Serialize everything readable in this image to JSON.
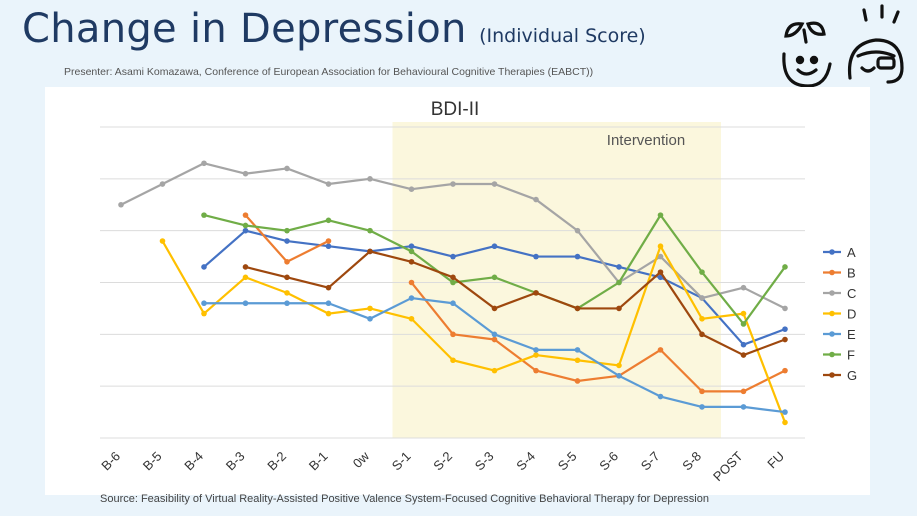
{
  "header": {
    "title": "Change in Depression",
    "subtitle": "(Individual Score)",
    "presenter": "Presenter: Asami Komazawa, Conference of European Association for Behavioural Cognitive Therapies (EABCT))"
  },
  "footer": {
    "source": "Source: Feasibility of Virtual Reality-Assisted Positive Valence System-Focused Cognitive Behavioral Therapy for Depression"
  },
  "chart_data": {
    "type": "line",
    "title": "BDI-II",
    "annotation": "Intervention",
    "categories": [
      "B-6",
      "B-5",
      "B-4",
      "B-3",
      "B-2",
      "B-1",
      "0w",
      "S-1",
      "S-2",
      "S-3",
      "S-4",
      "S-5",
      "S-6",
      "S-7",
      "S-8",
      "POST",
      "FU"
    ],
    "intervention_span": [
      "S-1",
      "S-8"
    ],
    "ylim": [
      0,
      60
    ],
    "grid": true,
    "legend_position": "right",
    "series": [
      {
        "name": "A",
        "color": "#4472c4",
        "values": [
          null,
          null,
          33,
          40,
          38,
          37,
          36,
          37,
          35,
          37,
          35,
          35,
          33,
          31,
          27,
          18,
          21
        ]
      },
      {
        "name": "B",
        "color": "#ed7d31",
        "values": [
          null,
          null,
          null,
          43,
          34,
          38,
          null,
          30,
          20,
          19,
          13,
          11,
          12,
          17,
          9,
          9,
          13
        ]
      },
      {
        "name": "C",
        "color": "#a5a5a5",
        "values": [
          45,
          49,
          53,
          51,
          52,
          49,
          50,
          48,
          49,
          49,
          46,
          40,
          30,
          35,
          27,
          29,
          25
        ]
      },
      {
        "name": "D",
        "color": "#ffc000",
        "values": [
          null,
          38,
          24,
          31,
          28,
          24,
          25,
          23,
          15,
          13,
          16,
          15,
          14,
          37,
          23,
          24,
          3
        ]
      },
      {
        "name": "E",
        "color": "#5b9bd5",
        "values": [
          null,
          null,
          26,
          26,
          26,
          26,
          23,
          27,
          26,
          20,
          17,
          17,
          12,
          8,
          6,
          6,
          5
        ]
      },
      {
        "name": "F",
        "color": "#70ad47",
        "values": [
          null,
          null,
          43,
          41,
          40,
          42,
          40,
          36,
          30,
          31,
          28,
          25,
          30,
          43,
          32,
          22,
          33
        ]
      },
      {
        "name": "G",
        "color": "#9e480e",
        "values": [
          null,
          null,
          null,
          33,
          31,
          29,
          36,
          34,
          31,
          25,
          28,
          25,
          25,
          32,
          20,
          16,
          19
        ]
      }
    ]
  }
}
